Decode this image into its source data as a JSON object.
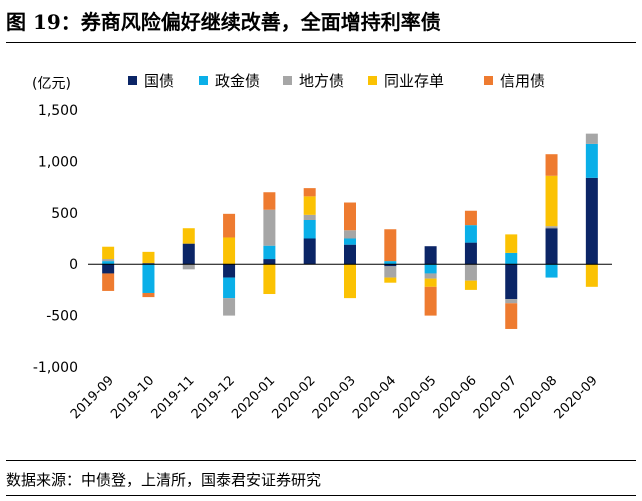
{
  "title": "图 19：券商风险偏好继续改善，全面增持利率债",
  "source": "数据来源：中债登，上清所，国泰君安证券研究",
  "colors": {
    "国债": "#0b2566",
    "政金债": "#0aafe8",
    "地方债": "#a6a6a6",
    "同业存单": "#fbc203",
    "信用债": "#ee7b30"
  },
  "chart_data": {
    "type": "bar",
    "stacked": true,
    "title": "图 19：券商风险偏好继续改善，全面增持利率债",
    "unit_label": "(亿元)",
    "xlabel": "",
    "ylabel": "",
    "ylim": [
      -1000,
      1500
    ],
    "yticks": [
      1500,
      1000,
      500,
      0,
      -500,
      -1000
    ],
    "ytick_labels": [
      "1,500",
      "1,000",
      "500",
      "0",
      "-500",
      "-1,000"
    ],
    "legend_position": "top",
    "grid": false,
    "categories": [
      "2019-09",
      "2019-10",
      "2019-11",
      "2019-12",
      "2020-01",
      "2020-02",
      "2020-03",
      "2020-04",
      "2020-05",
      "2020-06",
      "2020-07",
      "2020-08",
      "2020-09"
    ],
    "series": [
      {
        "name": "国债",
        "values": [
          -90,
          10,
          200,
          -130,
          50,
          250,
          190,
          -20,
          175,
          210,
          -340,
          350,
          840
        ]
      },
      {
        "name": "政金债",
        "values": [
          30,
          -280,
          0,
          -200,
          130,
          180,
          60,
          30,
          -90,
          170,
          110,
          -130,
          330
        ]
      },
      {
        "name": "地方债",
        "values": [
          20,
          0,
          -50,
          -170,
          350,
          50,
          80,
          -110,
          -50,
          -160,
          -40,
          20,
          100
        ]
      },
      {
        "name": "同业存单",
        "values": [
          120,
          110,
          150,
          260,
          -290,
          180,
          -330,
          -50,
          -80,
          -90,
          180,
          490,
          -220
        ]
      },
      {
        "name": "信用债",
        "values": [
          -170,
          -40,
          0,
          230,
          170,
          80,
          270,
          310,
          -280,
          140,
          -250,
          210,
          0
        ]
      }
    ]
  }
}
